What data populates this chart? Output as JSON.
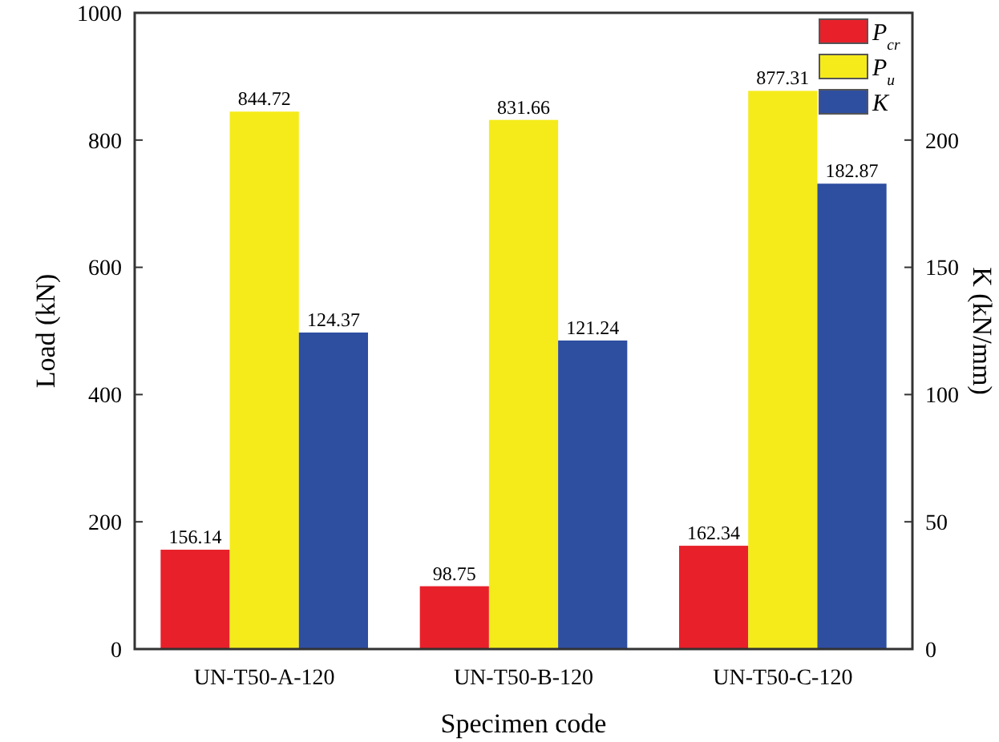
{
  "chart_data": {
    "type": "bar",
    "xlabel": "Specimen code",
    "ylabel": "Load (kN)",
    "y2label": "K (kN/mm)",
    "categories": [
      "UN-T50-A-120",
      "UN-T50-B-120",
      "UN-T50-C-120"
    ],
    "series": [
      {
        "name": "P$_{cr}$",
        "color": "#e8202a",
        "values": [
          156.14,
          98.75,
          162.34
        ]
      },
      {
        "name": "P$_{u}$",
        "color": "#f5eb1a",
        "values": [
          844.72,
          831.66,
          877.31
        ]
      },
      {
        "name": "K",
        "color": "#2e4ea0",
        "values": [
          124.37,
          121.24,
          182.87
        ],
        "axis": "y2"
      }
    ],
    "data_labels": true,
    "legend": "top right",
    "ylim": [
      0,
      1000
    ],
    "yticks": [
      0,
      200,
      400,
      600,
      800,
      1000
    ],
    "y2lim": [
      0,
      250
    ],
    "y2ticks": [
      0,
      50,
      100,
      150,
      200
    ]
  }
}
